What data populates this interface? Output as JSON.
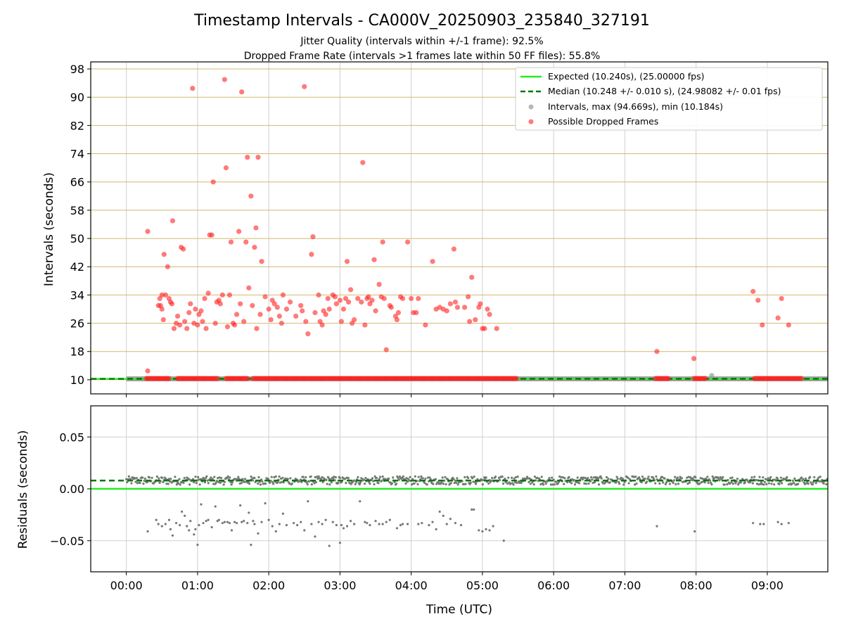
{
  "figure": {
    "title": "Timestamp Intervals - CA000V_20250903_235840_327191",
    "subtitle1": "Jitter Quality (intervals within +/-1 frame): 92.5%",
    "subtitle2": "Dropped Frame Rate (intervals >1 frames late within 50 FF files): 55.8%"
  },
  "chart_data": [
    {
      "type": "scatter",
      "panel": "intervals",
      "ylabel": "Intervals (seconds)",
      "ylim": [
        6,
        100
      ],
      "yticks": [
        10,
        18,
        26,
        34,
        42,
        50,
        58,
        66,
        74,
        82,
        90,
        98
      ],
      "xlim": [
        -0.5,
        9.85
      ],
      "grid": true,
      "legend_position": "upper right",
      "legend": [
        "Expected (10.240s), (25.00000 fps)",
        "Median (10.248 +/- 0.010 s), (24.98082 +/- 0.01 fps)",
        "Intervals, max (94.669s), min (10.184s)",
        "Possible Dropped Frames"
      ],
      "colors": {
        "expected": "#22ee22",
        "median": "#007700",
        "intervals": "#999999",
        "dropped": "#ff2222",
        "hgrid": "#d4b870"
      },
      "expected_y": 10.24,
      "median_y": 10.248,
      "baseline_segments": [
        [
          0.0,
          5.5
        ],
        [
          5.5,
          9.85
        ]
      ],
      "dropped_baseline_segments": [
        [
          0.28,
          0.62
        ],
        [
          0.72,
          1.3
        ],
        [
          1.4,
          1.72
        ],
        [
          1.78,
          5.48
        ],
        [
          7.43,
          7.62
        ],
        [
          7.97,
          8.14
        ],
        [
          8.82,
          9.48
        ]
      ],
      "dropped_points": [
        [
          0.3,
          12.5
        ],
        [
          0.3,
          52
        ],
        [
          0.45,
          31
        ],
        [
          0.47,
          33
        ],
        [
          0.48,
          31
        ],
        [
          0.5,
          34
        ],
        [
          0.5,
          30
        ],
        [
          0.52,
          27
        ],
        [
          0.53,
          45.5
        ],
        [
          0.55,
          34
        ],
        [
          0.58,
          42
        ],
        [
          0.6,
          33
        ],
        [
          0.62,
          32
        ],
        [
          0.64,
          31.5
        ],
        [
          0.65,
          55
        ],
        [
          0.67,
          24.5
        ],
        [
          0.7,
          26
        ],
        [
          0.72,
          28
        ],
        [
          0.75,
          25.5
        ],
        [
          0.77,
          47.5
        ],
        [
          0.8,
          47
        ],
        [
          0.82,
          26.5
        ],
        [
          0.85,
          24.5
        ],
        [
          0.88,
          29
        ],
        [
          0.9,
          31.5
        ],
        [
          0.93,
          92.5
        ],
        [
          0.95,
          26
        ],
        [
          0.97,
          30
        ],
        [
          1.0,
          25.5
        ],
        [
          1.02,
          28.5
        ],
        [
          1.05,
          29.5
        ],
        [
          1.07,
          26.5
        ],
        [
          1.1,
          33
        ],
        [
          1.12,
          24.5
        ],
        [
          1.15,
          34.5
        ],
        [
          1.17,
          51
        ],
        [
          1.2,
          51
        ],
        [
          1.22,
          66
        ],
        [
          1.25,
          26
        ],
        [
          1.27,
          32
        ],
        [
          1.3,
          32.5
        ],
        [
          1.32,
          31.5
        ],
        [
          1.35,
          34
        ],
        [
          1.38,
          95
        ],
        [
          1.4,
          70
        ],
        [
          1.42,
          25
        ],
        [
          1.45,
          34
        ],
        [
          1.47,
          49
        ],
        [
          1.5,
          26
        ],
        [
          1.52,
          25.5
        ],
        [
          1.55,
          28.5
        ],
        [
          1.58,
          52
        ],
        [
          1.6,
          31.5
        ],
        [
          1.62,
          91.5
        ],
        [
          1.65,
          26.5
        ],
        [
          1.68,
          49
        ],
        [
          1.7,
          73
        ],
        [
          1.72,
          36
        ],
        [
          1.75,
          62
        ],
        [
          1.77,
          31
        ],
        [
          1.8,
          47.5
        ],
        [
          1.82,
          53
        ],
        [
          1.83,
          24.5
        ],
        [
          1.85,
          73
        ],
        [
          1.88,
          28.5
        ],
        [
          1.9,
          43.5
        ],
        [
          1.95,
          33.5
        ],
        [
          2.0,
          30
        ],
        [
          2.03,
          27
        ],
        [
          2.05,
          32.5
        ],
        [
          2.08,
          31.5
        ],
        [
          2.12,
          30.5
        ],
        [
          2.15,
          28
        ],
        [
          2.18,
          26
        ],
        [
          2.2,
          34
        ],
        [
          2.25,
          30
        ],
        [
          2.3,
          32
        ],
        [
          2.38,
          28
        ],
        [
          2.45,
          31
        ],
        [
          2.47,
          29.5
        ],
        [
          2.5,
          93
        ],
        [
          2.52,
          26.5
        ],
        [
          2.55,
          23
        ],
        [
          2.6,
          45.5
        ],
        [
          2.62,
          50.5
        ],
        [
          2.65,
          29
        ],
        [
          2.7,
          34
        ],
        [
          2.72,
          26.5
        ],
        [
          2.75,
          25.5
        ],
        [
          2.77,
          29.5
        ],
        [
          2.8,
          28.5
        ],
        [
          2.83,
          33
        ],
        [
          2.85,
          30
        ],
        [
          2.9,
          34
        ],
        [
          2.93,
          33.5
        ],
        [
          2.95,
          31.5
        ],
        [
          3.0,
          32.5
        ],
        [
          3.02,
          26.5
        ],
        [
          3.05,
          30
        ],
        [
          3.08,
          33
        ],
        [
          3.1,
          43.5
        ],
        [
          3.12,
          32
        ],
        [
          3.15,
          35.5
        ],
        [
          3.17,
          26
        ],
        [
          3.2,
          27
        ],
        [
          3.25,
          33
        ],
        [
          3.3,
          32
        ],
        [
          3.32,
          71.5
        ],
        [
          3.35,
          25.5
        ],
        [
          3.38,
          33
        ],
        [
          3.4,
          33.5
        ],
        [
          3.42,
          31.5
        ],
        [
          3.45,
          32.5
        ],
        [
          3.48,
          44
        ],
        [
          3.5,
          29.5
        ],
        [
          3.55,
          37
        ],
        [
          3.58,
          33.5
        ],
        [
          3.6,
          49
        ],
        [
          3.62,
          33
        ],
        [
          3.65,
          18.5
        ],
        [
          3.7,
          31
        ],
        [
          3.72,
          30.5
        ],
        [
          3.78,
          28
        ],
        [
          3.8,
          27
        ],
        [
          3.82,
          29
        ],
        [
          3.85,
          33.5
        ],
        [
          3.88,
          33
        ],
        [
          3.95,
          49
        ],
        [
          4.0,
          33
        ],
        [
          4.03,
          29
        ],
        [
          4.07,
          29
        ],
        [
          4.1,
          33
        ],
        [
          4.2,
          25.5
        ],
        [
          4.3,
          43.5
        ],
        [
          4.35,
          30
        ],
        [
          4.4,
          30.5
        ],
        [
          4.45,
          30
        ],
        [
          4.5,
          29.5
        ],
        [
          4.55,
          31.5
        ],
        [
          4.6,
          47
        ],
        [
          4.62,
          32
        ],
        [
          4.65,
          30.5
        ],
        [
          4.75,
          30.5
        ],
        [
          4.8,
          33.5
        ],
        [
          4.82,
          26.5
        ],
        [
          4.85,
          39
        ],
        [
          4.9,
          27
        ],
        [
          4.95,
          30.5
        ],
        [
          4.97,
          31.5
        ],
        [
          5.0,
          24.5
        ],
        [
          5.03,
          24.5
        ],
        [
          5.07,
          30
        ],
        [
          5.1,
          28.5
        ],
        [
          5.2,
          24.5
        ],
        [
          7.45,
          18
        ],
        [
          7.97,
          16
        ],
        [
          8.8,
          35
        ],
        [
          8.87,
          32.5
        ],
        [
          8.93,
          25.5
        ],
        [
          9.15,
          27.5
        ],
        [
          9.2,
          33
        ],
        [
          9.3,
          25.5
        ]
      ],
      "gray_points": [
        [
          8.22,
          11.2
        ]
      ]
    },
    {
      "type": "scatter",
      "panel": "residuals",
      "ylabel": "Residuals (seconds)",
      "xlabel": "Time (UTC)",
      "ylim": [
        -0.08,
        0.08
      ],
      "yticks": [
        0.05,
        0.0,
        -0.05
      ],
      "ytick_labels": [
        "0.05",
        "0.00",
        "−0.05"
      ],
      "xlim": [
        -0.5,
        9.85
      ],
      "xticks": [
        0,
        1,
        2,
        3,
        4,
        5,
        6,
        7,
        8,
        9
      ],
      "xtick_labels": [
        "00:00",
        "01:00",
        "02:00",
        "03:00",
        "04:00",
        "05:00",
        "06:00",
        "07:00",
        "08:00",
        "09:00"
      ],
      "grid": true,
      "colors": {
        "zero": "#22ee22",
        "median": "#007700",
        "points": "#777777"
      },
      "zero_y": 0.0,
      "median_y": 0.008,
      "residual_band": {
        "x_range": [
          0.0,
          9.85
        ],
        "center": 0.008,
        "spread": 0.004
      },
      "negative_points": [
        [
          0.3,
          -0.041
        ],
        [
          0.42,
          -0.03
        ],
        [
          0.45,
          -0.034
        ],
        [
          0.5,
          -0.036
        ],
        [
          0.55,
          -0.034
        ],
        [
          0.6,
          -0.03
        ],
        [
          0.62,
          -0.039
        ],
        [
          0.65,
          -0.045
        ],
        [
          0.7,
          -0.033
        ],
        [
          0.75,
          -0.035
        ],
        [
          0.78,
          -0.022
        ],
        [
          0.82,
          -0.026
        ],
        [
          0.85,
          -0.036
        ],
        [
          0.88,
          -0.04
        ],
        [
          0.9,
          -0.031
        ],
        [
          0.95,
          -0.044
        ],
        [
          0.97,
          -0.039
        ],
        [
          1.0,
          -0.054
        ],
        [
          1.02,
          -0.035
        ],
        [
          1.05,
          -0.015
        ],
        [
          1.08,
          -0.033
        ],
        [
          1.12,
          -0.031
        ],
        [
          1.15,
          -0.03
        ],
        [
          1.2,
          -0.037
        ],
        [
          1.25,
          -0.017
        ],
        [
          1.28,
          -0.031
        ],
        [
          1.3,
          -0.03
        ],
        [
          1.35,
          -0.033
        ],
        [
          1.38,
          -0.032
        ],
        [
          1.42,
          -0.032
        ],
        [
          1.45,
          -0.033
        ],
        [
          1.48,
          -0.04
        ],
        [
          1.52,
          -0.032
        ],
        [
          1.55,
          -0.033
        ],
        [
          1.6,
          -0.016
        ],
        [
          1.62,
          -0.032
        ],
        [
          1.65,
          -0.031
        ],
        [
          1.7,
          -0.033
        ],
        [
          1.72,
          -0.023
        ],
        [
          1.75,
          -0.054
        ],
        [
          1.78,
          -0.031
        ],
        [
          1.8,
          -0.034
        ],
        [
          1.85,
          -0.043
        ],
        [
          1.9,
          -0.032
        ],
        [
          1.95,
          -0.014
        ],
        [
          2.0,
          -0.03
        ],
        [
          2.05,
          -0.036
        ],
        [
          2.1,
          -0.041
        ],
        [
          2.15,
          -0.034
        ],
        [
          2.2,
          -0.024
        ],
        [
          2.25,
          -0.035
        ],
        [
          2.35,
          -0.033
        ],
        [
          2.4,
          -0.035
        ],
        [
          2.45,
          -0.032
        ],
        [
          2.5,
          -0.04
        ],
        [
          2.55,
          -0.012
        ],
        [
          2.6,
          -0.034
        ],
        [
          2.65,
          -0.046
        ],
        [
          2.7,
          -0.032
        ],
        [
          2.75,
          -0.034
        ],
        [
          2.8,
          -0.03
        ],
        [
          2.85,
          -0.055
        ],
        [
          2.9,
          -0.032
        ],
        [
          2.95,
          -0.035
        ],
        [
          3.0,
          -0.052
        ],
        [
          3.02,
          -0.035
        ],
        [
          3.05,
          -0.038
        ],
        [
          3.1,
          -0.036
        ],
        [
          3.15,
          -0.031
        ],
        [
          3.2,
          -0.034
        ],
        [
          3.28,
          -0.012
        ],
        [
          3.35,
          -0.032
        ],
        [
          3.38,
          -0.033
        ],
        [
          3.42,
          -0.035
        ],
        [
          3.5,
          -0.031
        ],
        [
          3.55,
          -0.034
        ],
        [
          3.6,
          -0.034
        ],
        [
          3.65,
          -0.032
        ],
        [
          3.7,
          -0.03
        ],
        [
          3.8,
          -0.038
        ],
        [
          3.85,
          -0.035
        ],
        [
          3.88,
          -0.034
        ],
        [
          3.95,
          -0.034
        ],
        [
          4.1,
          -0.034
        ],
        [
          4.15,
          -0.033
        ],
        [
          4.25,
          -0.035
        ],
        [
          4.3,
          -0.032
        ],
        [
          4.35,
          -0.039
        ],
        [
          4.4,
          -0.022
        ],
        [
          4.45,
          -0.026
        ],
        [
          4.5,
          -0.034
        ],
        [
          4.55,
          -0.029
        ],
        [
          4.62,
          -0.033
        ],
        [
          4.7,
          -0.035
        ],
        [
          4.85,
          -0.02
        ],
        [
          4.88,
          -0.02
        ],
        [
          4.95,
          -0.04
        ],
        [
          5.0,
          -0.041
        ],
        [
          5.05,
          -0.039
        ],
        [
          5.1,
          -0.04
        ],
        [
          5.15,
          -0.036
        ],
        [
          5.3,
          -0.05
        ],
        [
          7.45,
          -0.036
        ],
        [
          7.98,
          -0.041
        ],
        [
          8.8,
          -0.033
        ],
        [
          8.9,
          -0.034
        ],
        [
          8.95,
          -0.034
        ],
        [
          9.15,
          -0.032
        ],
        [
          9.2,
          -0.034
        ],
        [
          9.3,
          -0.033
        ]
      ]
    }
  ]
}
